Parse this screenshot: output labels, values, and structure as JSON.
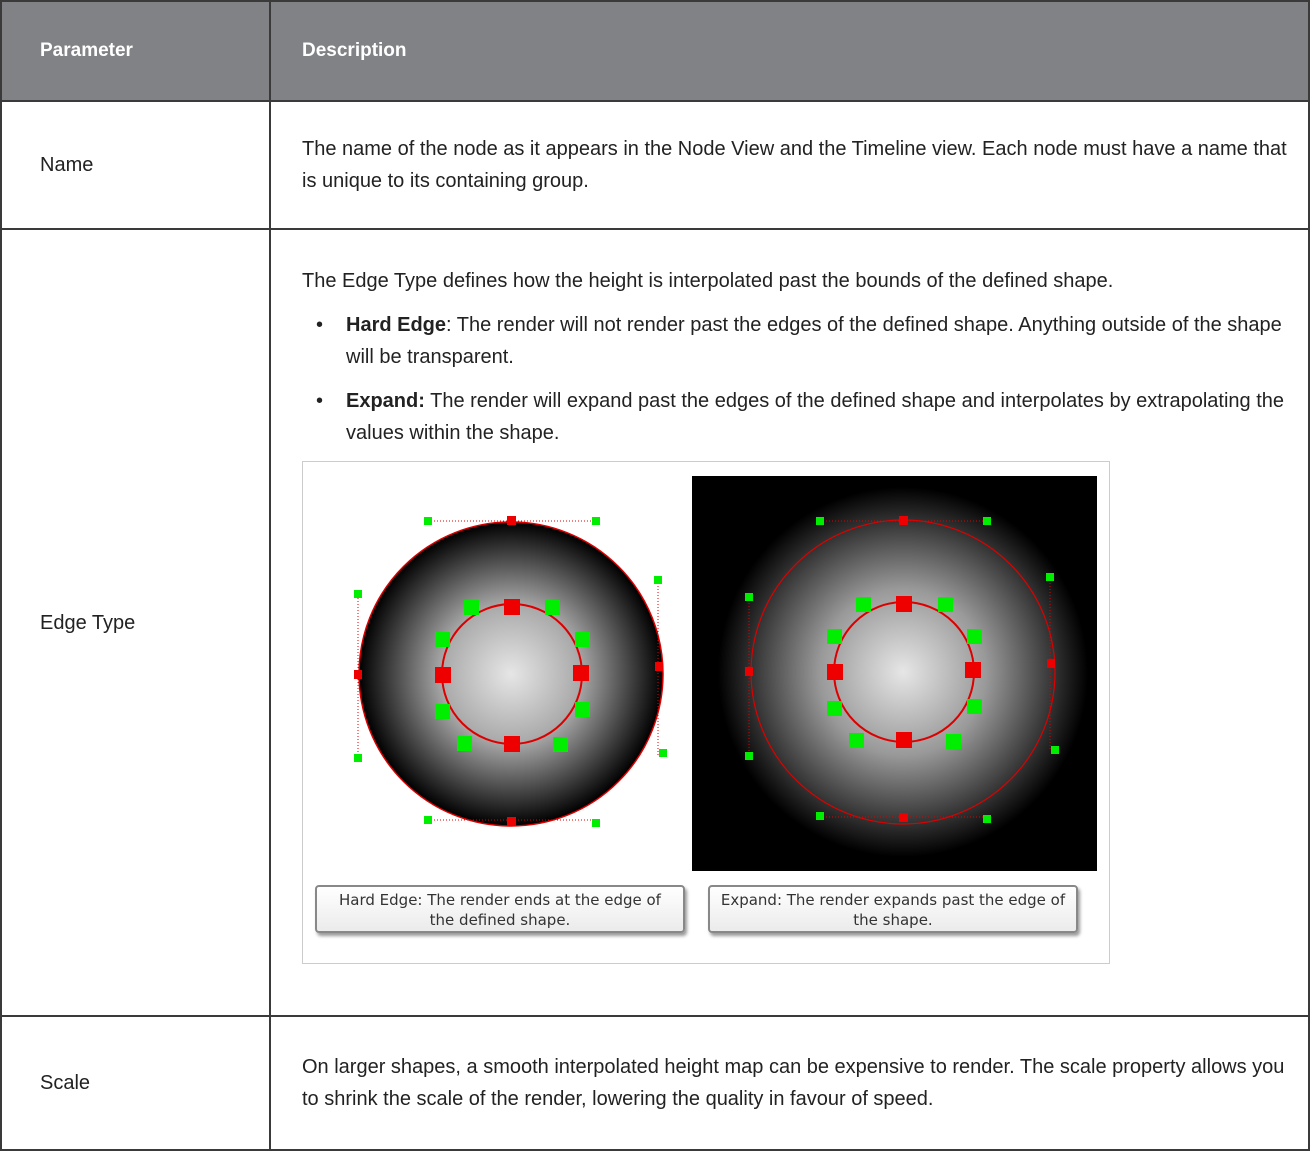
{
  "table": {
    "header": [
      "Parameter",
      "Description"
    ],
    "rows": [
      {
        "parameter": "Name",
        "description": "The name of the node as it appears in the Node View and the Timeline view. Each node must have a name that is unique to its containing group."
      },
      {
        "parameter": "Edge Type",
        "description": "The Edge Type defines how the height is interpolated past the bounds of the defined shape.",
        "bullets": [
          {
            "term": "Hard Edge",
            "text": ": The render will not render past the edges of the defined shape. Anything outside of the shape will be transparent."
          },
          {
            "term": "Expand:",
            "text": " The render will expand past the edges of the defined shape and interpolates by extrapolating the values within the shape."
          }
        ],
        "captions": [
          "Hard Edge: The render ends at the edge of the defined shape.",
          "Expand: The render expands past the edge of the shape."
        ]
      },
      {
        "parameter": "Scale",
        "description": "On larger shapes, a smooth interpolated height map can be expensive to render. The scale property allows you to shrink the scale of the render, lowering the quality in favour of speed."
      }
    ]
  }
}
